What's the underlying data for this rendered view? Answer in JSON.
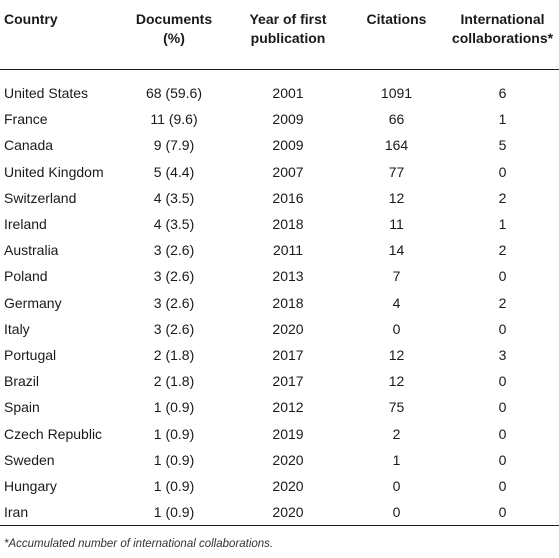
{
  "table": {
    "headers": [
      "Country",
      "Documents (%)",
      "Year of first publication",
      "Citations",
      "International collaborations*"
    ],
    "rows": [
      {
        "country": "United States",
        "documents": "68 (59.6)",
        "year": "2001",
        "citations": "1091",
        "international": "6"
      },
      {
        "country": "France",
        "documents": "11 (9.6)",
        "year": "2009",
        "citations": "66",
        "international": "1"
      },
      {
        "country": "Canada",
        "documents": "9 (7.9)",
        "year": "2009",
        "citations": "164",
        "international": "5"
      },
      {
        "country": "United Kingdom",
        "documents": "5 (4.4)",
        "year": "2007",
        "citations": "77",
        "international": "0"
      },
      {
        "country": "Switzerland",
        "documents": "4 (3.5)",
        "year": "2016",
        "citations": "12",
        "international": "2"
      },
      {
        "country": "Ireland",
        "documents": "4 (3.5)",
        "year": "2018",
        "citations": "11",
        "international": "1"
      },
      {
        "country": "Australia",
        "documents": "3 (2.6)",
        "year": "2011",
        "citations": "14",
        "international": "2"
      },
      {
        "country": "Poland",
        "documents": "3 (2.6)",
        "year": "2013",
        "citations": "7",
        "international": "0"
      },
      {
        "country": "Germany",
        "documents": "3 (2.6)",
        "year": "2018",
        "citations": "4",
        "international": "2"
      },
      {
        "country": "Italy",
        "documents": "3 (2.6)",
        "year": "2020",
        "citations": "0",
        "international": "0"
      },
      {
        "country": "Portugal",
        "documents": "2 (1.8)",
        "year": "2017",
        "citations": "12",
        "international": "3"
      },
      {
        "country": "Brazil",
        "documents": "2 (1.8)",
        "year": "2017",
        "citations": "12",
        "international": "0"
      },
      {
        "country": "Spain",
        "documents": "1 (0.9)",
        "year": "2012",
        "citations": "75",
        "international": "0"
      },
      {
        "country": "Czech Republic",
        "documents": "1 (0.9)",
        "year": "2019",
        "citations": "2",
        "international": "0"
      },
      {
        "country": "Sweden",
        "documents": "1 (0.9)",
        "year": "2020",
        "citations": "1",
        "international": "0"
      },
      {
        "country": "Hungary",
        "documents": "1 (0.9)",
        "year": "2020",
        "citations": "0",
        "international": "0"
      },
      {
        "country": "Iran",
        "documents": "1 (0.9)",
        "year": "2020",
        "citations": "0",
        "international": "0"
      }
    ]
  },
  "footnote": "*Accumulated number of international collaborations."
}
